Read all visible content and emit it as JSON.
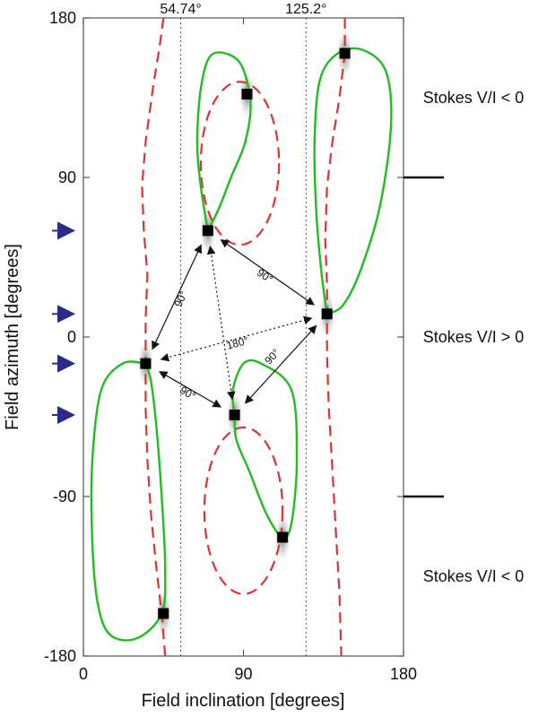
{
  "chart_data": {
    "type": "scatter",
    "title": "",
    "xlabel": "Field inclination [degrees]",
    "ylabel": "Field azimuth [degrees]",
    "xlim": [
      0,
      180
    ],
    "ylim": [
      -180,
      180
    ],
    "x_ticks": [
      0,
      90,
      180
    ],
    "y_ticks": [
      180,
      90,
      0,
      -90,
      -180
    ],
    "grid": false,
    "reference_lines": [
      {
        "x": 54.74,
        "label": "54.74°"
      },
      {
        "x": 125.2,
        "label": "125.2°"
      }
    ],
    "solutions": [
      {
        "x": 35,
        "y": -15
      },
      {
        "x": 70,
        "y": 60
      },
      {
        "x": 92,
        "y": 137
      },
      {
        "x": 137,
        "y": 13
      },
      {
        "x": 147,
        "y": 160
      },
      {
        "x": 85,
        "y": -44
      },
      {
        "x": 112,
        "y": -113
      },
      {
        "x": 45,
        "y": -156
      }
    ],
    "angle_annotations": [
      {
        "from": [
          35,
          -15
        ],
        "to": [
          70,
          60
        ],
        "label": "90°",
        "style": "solid"
      },
      {
        "from": [
          70,
          60
        ],
        "to": [
          137,
          13
        ],
        "label": "90°",
        "style": "solid"
      },
      {
        "from": [
          35,
          -15
        ],
        "to": [
          137,
          13
        ],
        "label": "180°",
        "style": "dotted"
      },
      {
        "from": [
          70,
          60
        ],
        "to": [
          85,
          -44
        ],
        "label": "",
        "style": "dotted"
      },
      {
        "from": [
          35,
          -15
        ],
        "to": [
          85,
          -44
        ],
        "label": "90°",
        "style": "solid"
      },
      {
        "from": [
          137,
          13
        ],
        "to": [
          85,
          -44
        ],
        "label": "90°",
        "style": "solid"
      }
    ],
    "side_labels": [
      {
        "y": 135,
        "text": "Stokes V/I < 0"
      },
      {
        "y": 0,
        "text": "Stokes V/I > 0"
      },
      {
        "y": -135,
        "text": "Stokes V/I < 0"
      }
    ],
    "region_boundaries": [
      90,
      -90
    ],
    "arrow_markers_y": [
      60,
      13,
      -15,
      -44
    ],
    "colors": {
      "green_contour": "#22bb22",
      "red_dashed": "#dd3333",
      "arrow_marker": "#2a2a8a",
      "axis": "#555555"
    }
  }
}
